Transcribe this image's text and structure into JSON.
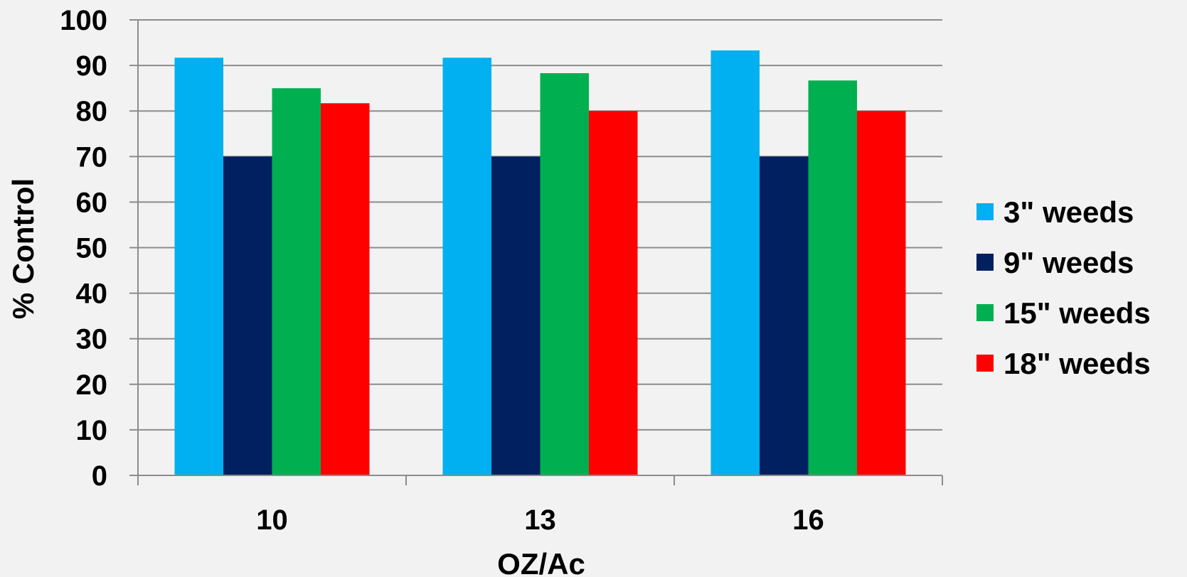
{
  "chart_data": {
    "type": "bar",
    "title": "",
    "xlabel": "OZ/Ac",
    "ylabel": "% Control",
    "categories": [
      "10",
      "13",
      "16"
    ],
    "ylim": [
      0,
      100
    ],
    "yticks": [
      0,
      10,
      20,
      30,
      40,
      50,
      60,
      70,
      80,
      90,
      100
    ],
    "grid": true,
    "legend_position": "right",
    "series": [
      {
        "name": "3\" weeds",
        "color": "#00b0f0",
        "values": [
          91.7,
          91.7,
          93.3
        ]
      },
      {
        "name": "9\" weeds",
        "color": "#002060",
        "values": [
          70,
          70,
          70
        ]
      },
      {
        "name": "15\" weeds",
        "color": "#00b050",
        "values": [
          85,
          88.3,
          86.7
        ]
      },
      {
        "name": "18\" weeds",
        "color": "#ff0000",
        "values": [
          81.7,
          80,
          80
        ]
      }
    ]
  }
}
